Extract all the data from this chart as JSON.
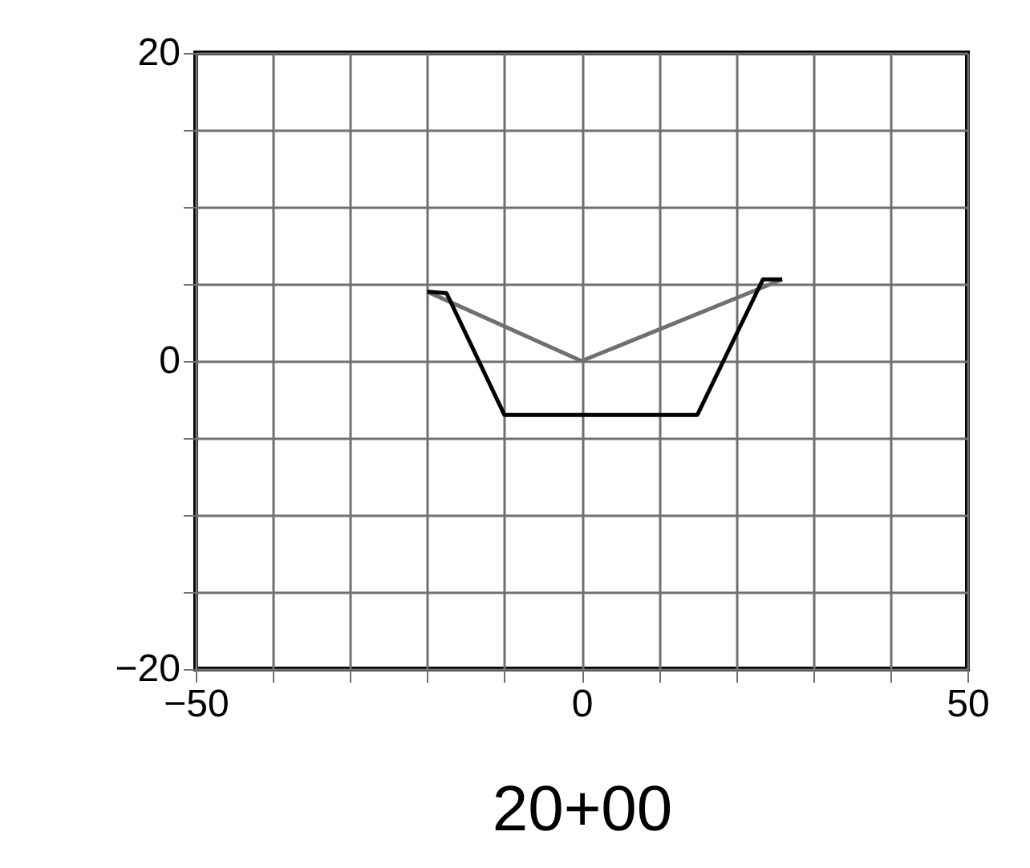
{
  "chart_data": {
    "type": "line",
    "xlabel": "20+00",
    "xlim": [
      -50,
      50
    ],
    "ylim": [
      -20,
      20
    ],
    "xticks": [
      -50,
      {
        "value": -40,
        "label": null
      },
      {
        "value": -30,
        "label": null
      },
      {
        "value": -20,
        "label": null
      },
      {
        "value": -10,
        "label": null
      },
      0,
      {
        "value": 10,
        "label": null
      },
      {
        "value": 20,
        "label": null
      },
      {
        "value": 30,
        "label": null
      },
      {
        "value": 40,
        "label": null
      },
      50
    ],
    "yticks": [
      -20,
      {
        "value": -15,
        "label": null
      },
      {
        "value": -10,
        "label": null
      },
      {
        "value": -5,
        "label": null
      },
      0,
      {
        "value": 5,
        "label": null
      },
      {
        "value": 10,
        "label": null
      },
      {
        "value": 15,
        "label": null
      },
      20
    ],
    "grid": true,
    "series": [
      {
        "color": "#707070",
        "x": [
          -20,
          0,
          26
        ],
        "values": [
          4.5,
          0,
          5.3
        ]
      },
      {
        "color": "#000000",
        "x": [
          -20,
          -17.5,
          -10,
          15,
          23.5,
          26
        ],
        "values": [
          4.5,
          4.4,
          -3.5,
          -3.5,
          5.3,
          5.3
        ]
      }
    ]
  }
}
